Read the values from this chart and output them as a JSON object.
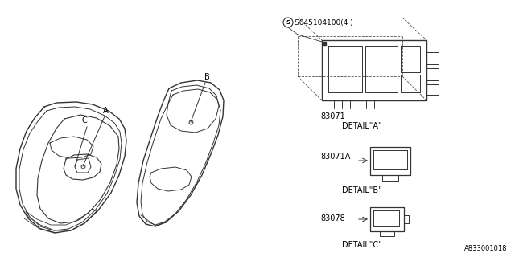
{
  "bg_color": "#ffffff",
  "part_number_bottom_right": "A833001018",
  "screw_label": "S045104100(4 )",
  "detail_a_label": "83071",
  "detail_a_text": "DETAIL\"A\"",
  "detail_b_label": "83071A",
  "detail_b_text": "DETAIL\"B\"",
  "detail_c_label": "83078",
  "detail_c_text": "DETAIL\"C\"",
  "label_A": "A",
  "label_B": "B",
  "label_C": "C"
}
